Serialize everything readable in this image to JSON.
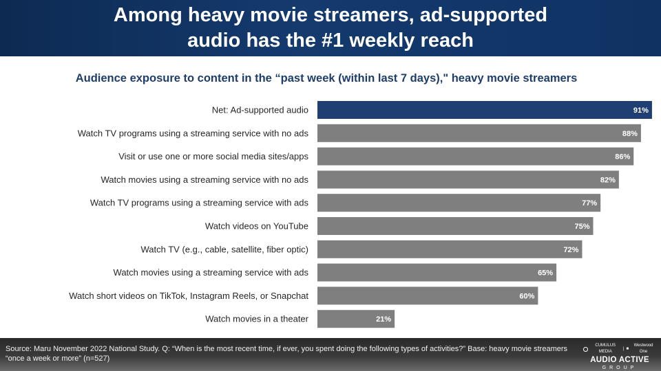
{
  "header": {
    "title_line1": "Among heavy movie streamers, ad-supported",
    "title_line2": "audio has the #1 weekly reach"
  },
  "subtitle": "Audience exposure to content in the “past week (within last 7 days),\" heavy movie streamers",
  "chart_data": {
    "type": "bar",
    "orientation": "horizontal",
    "categories": [
      "Net: Ad-supported audio",
      "Watch TV programs using a streaming service with no ads",
      "Visit or use one or more social media sites/apps",
      "Watch movies using a streaming service with no ads",
      "Watch TV programs using a streaming service with ads",
      "Watch videos on YouTube",
      "Watch TV (e.g., cable, satellite, fiber optic)",
      "Watch movies using a streaming service with ads",
      "Watch short videos on TikTok, Instagram Reels, or Snapchat",
      "Watch movies in a theater"
    ],
    "values": [
      91,
      88,
      86,
      82,
      77,
      75,
      72,
      65,
      60,
      21
    ],
    "value_labels": [
      "91%",
      "88%",
      "86%",
      "82%",
      "77%",
      "75%",
      "72%",
      "65%",
      "60%",
      "21%"
    ],
    "unit": "%",
    "highlight_index": 0,
    "colors": {
      "highlight": "#1f3f72",
      "default": "#7f7f7f"
    },
    "xlim": [
      0,
      100
    ],
    "grid": false,
    "legend": "none"
  },
  "footer": {
    "source": "Source: Maru November 2022 National Study. Q: “When is the most recent time, if ever, you spent doing the following types of activities?” Base: heavy movie streamers “once a week or more” (n=527)",
    "logo_top_left": "CUMULUS MEDIA",
    "logo_top_right": "Westwood One",
    "logo_main": "AUDIO ACTIVE",
    "logo_sub": "GROUP"
  }
}
